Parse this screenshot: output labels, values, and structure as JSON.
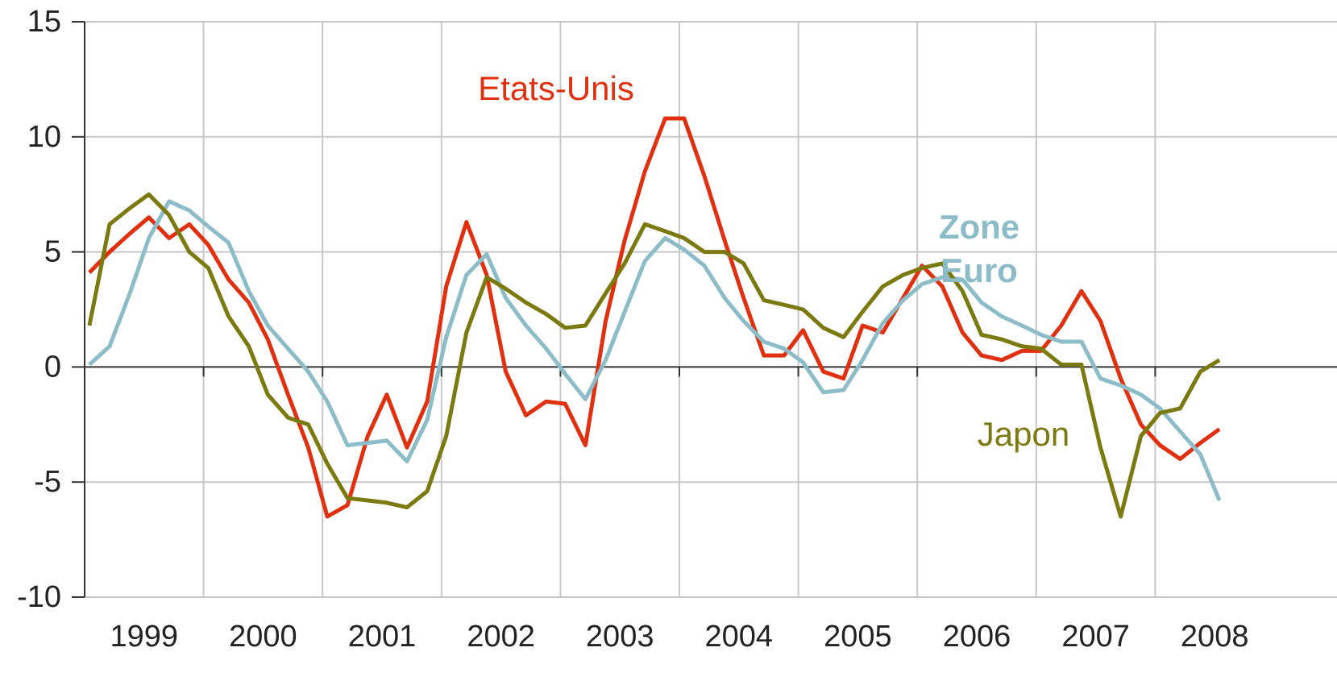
{
  "chart_data": {
    "type": "line",
    "x": [
      1999.04,
      1999.21,
      1999.38,
      1999.54,
      1999.71,
      1999.88,
      2000.04,
      2000.21,
      2000.38,
      2000.54,
      2000.71,
      2000.88,
      2001.04,
      2001.21,
      2001.38,
      2001.54,
      2001.71,
      2001.88,
      2002.04,
      2002.21,
      2002.38,
      2002.54,
      2002.71,
      2002.88,
      2003.04,
      2003.21,
      2003.38,
      2003.54,
      2003.71,
      2003.88,
      2004.04,
      2004.21,
      2004.38,
      2004.54,
      2004.71,
      2004.88,
      2005.04,
      2005.21,
      2005.38,
      2005.54,
      2005.71,
      2005.88,
      2006.04,
      2006.21,
      2006.38,
      2006.54,
      2006.71,
      2006.88,
      2007.04,
      2007.21,
      2007.38,
      2007.54,
      2007.71,
      2007.88,
      2008.04,
      2008.21,
      2008.38,
      2008.54
    ],
    "series": [
      {
        "name": "Etats-Unis",
        "color": "#e03010",
        "values": [
          4.1,
          5.0,
          5.8,
          6.5,
          5.6,
          6.2,
          5.3,
          3.8,
          2.8,
          1.2,
          -1.2,
          -3.5,
          -6.5,
          -6.0,
          -3.0,
          -1.2,
          -3.5,
          -1.5,
          3.5,
          6.3,
          4.0,
          -0.2,
          -2.1,
          -1.5,
          -1.6,
          -3.4,
          2.0,
          5.5,
          8.5,
          10.8,
          10.8,
          8.3,
          5.5,
          3.0,
          0.5,
          0.5,
          1.6,
          -0.2,
          -0.5,
          1.8,
          1.5,
          3.0,
          4.4,
          3.5,
          1.5,
          0.5,
          0.3,
          0.7,
          0.7,
          1.8,
          3.3,
          2.0,
          -0.5,
          -2.5,
          -3.4,
          -4.0,
          -3.3,
          -2.7
        ]
      },
      {
        "name": "Zone Euro",
        "color": "#8bbcc8",
        "values": [
          0.1,
          0.9,
          3.2,
          5.6,
          7.2,
          6.8,
          6.1,
          5.4,
          3.3,
          1.8,
          0.8,
          -0.2,
          -1.5,
          -3.4,
          -3.3,
          -3.2,
          -4.1,
          -2.3,
          1.3,
          4.0,
          4.9,
          3.0,
          1.8,
          0.8,
          -0.3,
          -1.4,
          0.3,
          2.4,
          4.6,
          5.6,
          5.1,
          4.4,
          3.0,
          2.0,
          1.1,
          0.8,
          0.2,
          -1.1,
          -1.0,
          0.3,
          1.9,
          2.9,
          3.6,
          3.9,
          3.8,
          2.8,
          2.2,
          1.8,
          1.4,
          1.1,
          1.1,
          -0.5,
          -0.8,
          -1.2,
          -1.8,
          -2.8,
          -3.8,
          -5.8
        ]
      },
      {
        "name": "Japon",
        "color": "#7a7a10",
        "values": [
          1.8,
          6.2,
          6.9,
          7.5,
          6.6,
          5.0,
          4.3,
          2.2,
          0.9,
          -1.2,
          -2.2,
          -2.5,
          -4.2,
          -5.7,
          -5.8,
          -5.9,
          -6.1,
          -5.4,
          -3.0,
          1.5,
          3.9,
          3.4,
          2.8,
          2.3,
          1.7,
          1.8,
          3.2,
          4.5,
          6.2,
          5.9,
          5.6,
          5.0,
          5.0,
          4.5,
          2.9,
          2.7,
          2.5,
          1.7,
          1.3,
          2.4,
          3.5,
          4.0,
          4.3,
          4.5,
          3.3,
          1.4,
          1.2,
          0.9,
          0.8,
          0.1,
          0.1,
          -3.5,
          -6.5,
          -3.0,
          -2.0,
          -1.8,
          -0.2,
          0.3
        ]
      }
    ],
    "xlim": [
      1999,
      2009
    ],
    "xticks": [
      1999,
      2000,
      2001,
      2002,
      2003,
      2004,
      2005,
      2006,
      2007,
      2008
    ],
    "ylim": [
      -10,
      15
    ],
    "yticks": [
      15,
      10,
      5,
      0,
      -5,
      -10
    ],
    "grid": true
  }
}
